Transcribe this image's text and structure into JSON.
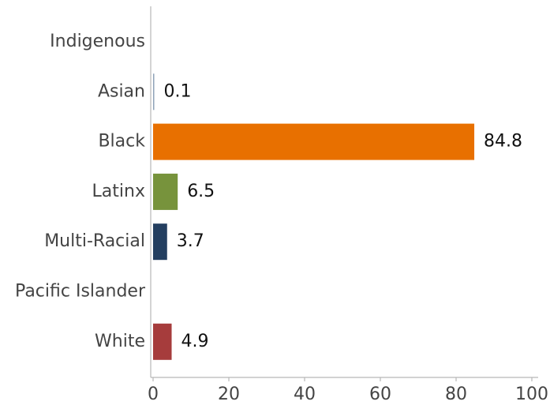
{
  "chart_data": {
    "type": "bar",
    "orientation": "horizontal",
    "categories": [
      "Indigenous",
      "Asian",
      "Black",
      "Latinx",
      "Multi-Racial",
      "Pacific Islander",
      "White"
    ],
    "values": [
      null,
      0.1,
      84.8,
      6.5,
      3.7,
      null,
      4.9
    ],
    "value_labels": [
      "",
      "0.1",
      "84.8",
      "6.5",
      "3.7",
      "",
      "4.9"
    ],
    "colors": [
      "#8fa3b8",
      "#8fa3b8",
      "#e87000",
      "#77933c",
      "#243f60",
      "#8fa3b8",
      "#a63c3c"
    ],
    "xlim": [
      0,
      100
    ],
    "xticks": [
      0,
      20,
      40,
      60,
      80,
      100
    ],
    "xtick_labels": [
      "0",
      "20",
      "40",
      "60",
      "80",
      "100"
    ],
    "grid": false,
    "legend": "none",
    "title": "",
    "xlabel": "",
    "ylabel": ""
  }
}
